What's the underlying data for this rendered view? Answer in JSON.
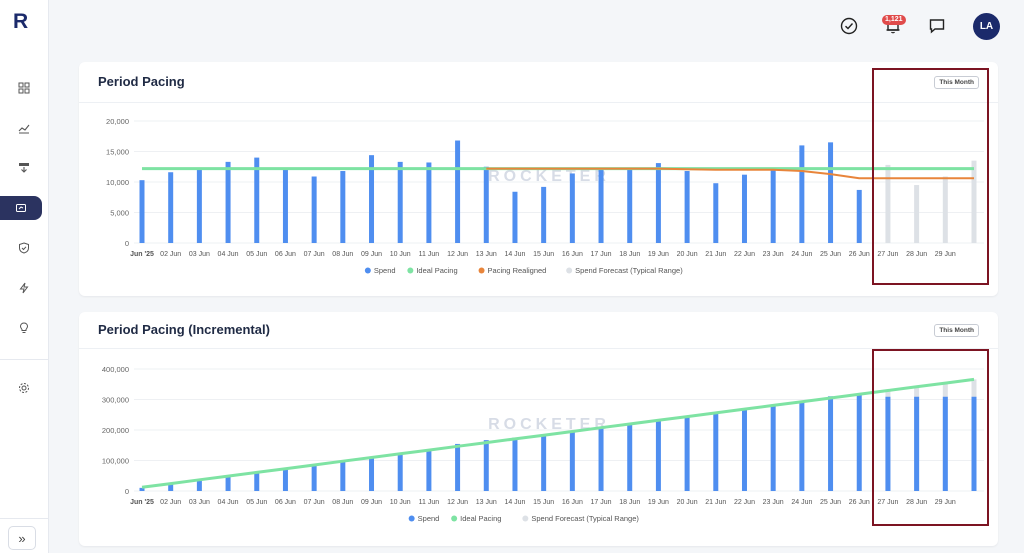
{
  "app": {
    "logo": "R"
  },
  "sidebar": {
    "items": [
      {
        "name": "dashboard",
        "icon": "grid-icon"
      },
      {
        "name": "trends",
        "icon": "trend-icon"
      },
      {
        "name": "budget",
        "icon": "download-tray-icon"
      },
      {
        "name": "pacing",
        "icon": "pacing-icon",
        "active": true
      },
      {
        "name": "shield",
        "icon": "shield-icon"
      },
      {
        "name": "automation",
        "icon": "bolt-icon"
      },
      {
        "name": "insights",
        "icon": "lightbulb-icon"
      },
      {
        "name": "settings",
        "icon": "gear-icon"
      }
    ],
    "collapse_label": "»"
  },
  "topbar": {
    "notifications_badge": "1,121",
    "avatar_initials": "LA"
  },
  "watermark": "ROCKETER",
  "colors": {
    "spend": "#4f8ef0",
    "ideal": "#7ee3a3",
    "realigned": "#e8853b",
    "forecast": "#dde1e6",
    "highlight": "#7c1422"
  },
  "chart_data": [
    {
      "type": "bar",
      "title": "Period Pacing",
      "filter_label": "This Month",
      "categories": [
        "Jun '25",
        "02 Jun",
        "03 Jun",
        "04 Jun",
        "05 Jun",
        "06 Jun",
        "07 Jun",
        "08 Jun",
        "09 Jun",
        "10 Jun",
        "11 Jun",
        "12 Jun",
        "13 Jun",
        "14 Jun",
        "15 Jun",
        "16 Jun",
        "17 Jun",
        "18 Jun",
        "19 Jun",
        "20 Jun",
        "21 Jun",
        "22 Jun",
        "23 Jun",
        "24 Jun",
        "25 Jun",
        "26 Jun",
        "27 Jun",
        "28 Jun",
        "29 Jun",
        ""
      ],
      "yticks": [
        "0",
        "5,000",
        "10,000",
        "15,000",
        "20,000"
      ],
      "ylim": [
        0,
        20000
      ],
      "series": [
        {
          "name": "Spend",
          "values": [
            10300,
            11600,
            12300,
            13300,
            14000,
            12300,
            10900,
            11800,
            14400,
            13300,
            13200,
            16800,
            12500,
            8400,
            9200,
            11400,
            12300,
            12000,
            13100,
            11800,
            9800,
            11200,
            12100,
            16000,
            16500,
            8700,
            null,
            null,
            null,
            null
          ]
        },
        {
          "name": "Ideal Pacing",
          "values": [
            12200,
            12200,
            12200,
            12200,
            12200,
            12200,
            12200,
            12200,
            12200,
            12200,
            12200,
            12200,
            12200,
            12200,
            12200,
            12200,
            12200,
            12200,
            12200,
            12200,
            12200,
            12200,
            12200,
            12200,
            12200,
            12200,
            12200,
            12200,
            12200,
            12200
          ]
        },
        {
          "name": "Pacing Realigned",
          "values": [
            null,
            null,
            null,
            null,
            null,
            null,
            null,
            null,
            null,
            null,
            null,
            null,
            12200,
            12200,
            12200,
            12200,
            12200,
            12200,
            12200,
            12100,
            12000,
            12000,
            12000,
            11800,
            11300,
            10600,
            10600,
            10600,
            10600,
            10600
          ]
        },
        {
          "name": "Spend Forecast (Typical Range)",
          "values": [
            null,
            null,
            null,
            null,
            null,
            null,
            null,
            null,
            null,
            null,
            null,
            null,
            null,
            null,
            null,
            null,
            null,
            null,
            null,
            null,
            null,
            null,
            null,
            null,
            null,
            null,
            12800,
            9500,
            10900,
            13500
          ]
        }
      ]
    },
    {
      "type": "bar",
      "title": "Period Pacing (Incremental)",
      "filter_label": "This Month",
      "categories": [
        "Jun '25",
        "02 Jun",
        "03 Jun",
        "04 Jun",
        "05 Jun",
        "06 Jun",
        "07 Jun",
        "08 Jun",
        "09 Jun",
        "10 Jun",
        "11 Jun",
        "12 Jun",
        "13 Jun",
        "14 Jun",
        "15 Jun",
        "16 Jun",
        "17 Jun",
        "18 Jun",
        "19 Jun",
        "20 Jun",
        "21 Jun",
        "22 Jun",
        "23 Jun",
        "24 Jun",
        "25 Jun",
        "26 Jun",
        "27 Jun",
        "28 Jun",
        "29 Jun",
        ""
      ],
      "yticks": [
        "0",
        "100,000",
        "200,000",
        "300,000",
        "400,000"
      ],
      "ylim": [
        0,
        400000
      ],
      "series": [
        {
          "name": "Spend",
          "values": [
            10300,
            22000,
            34300,
            47600,
            61600,
            73900,
            84800,
            96600,
            111000,
            124300,
            137500,
            154300,
            166800,
            175200,
            184400,
            195800,
            208100,
            220100,
            233200,
            245000,
            254800,
            266000,
            278100,
            294100,
            310600,
            319300,
            309000,
            309000,
            309000,
            309000
          ]
        },
        {
          "name": "Ideal Pacing",
          "values": [
            12200,
            24400,
            36600,
            48800,
            61000,
            73200,
            85400,
            97600,
            109800,
            122000,
            134200,
            146400,
            158600,
            170800,
            183000,
            195200,
            207400,
            219600,
            231800,
            244000,
            256200,
            268400,
            280600,
            292800,
            305000,
            317200,
            329400,
            341600,
            353800,
            366000
          ]
        },
        {
          "name": "Spend Forecast (Typical Range)",
          "values": [
            null,
            null,
            null,
            null,
            null,
            null,
            null,
            null,
            null,
            null,
            null,
            null,
            null,
            null,
            null,
            null,
            null,
            null,
            null,
            null,
            null,
            null,
            null,
            null,
            null,
            null,
            332100,
            341600,
            352500,
            366000
          ]
        }
      ]
    }
  ]
}
